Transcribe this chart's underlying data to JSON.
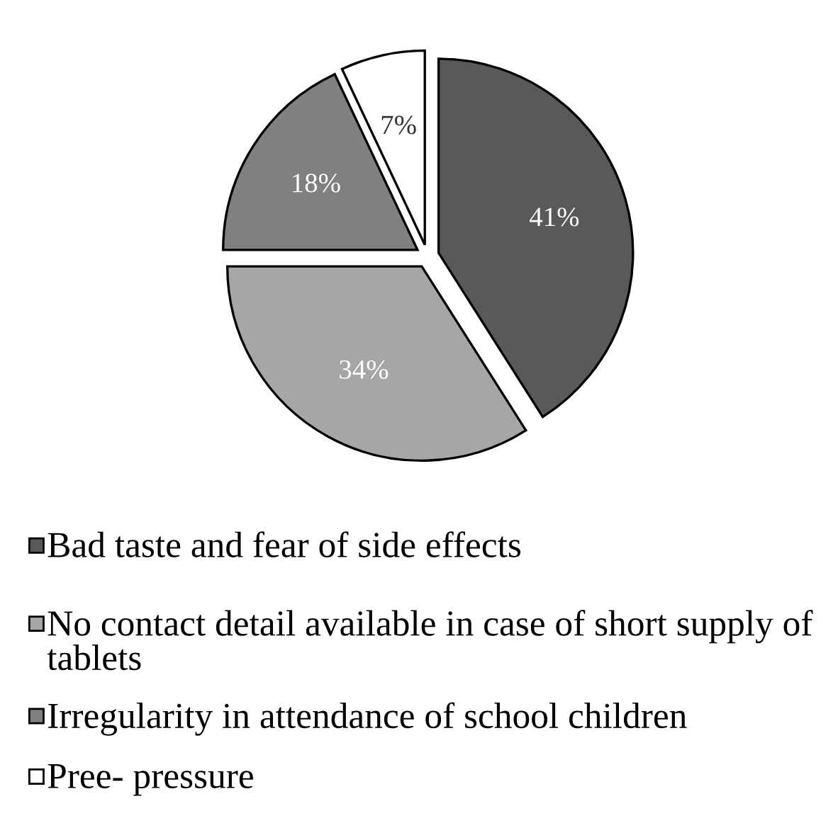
{
  "chart_data": {
    "type": "pie",
    "categories": [
      "Bad taste and fear of side effects",
      "No contact detail available in case of short supply of tablets",
      "Irregularity in attendance of school children",
      "Pree- pressure"
    ],
    "values": [
      41,
      34,
      18,
      7
    ],
    "colors": [
      "#595959",
      "#a6a6a6",
      "#808080",
      "#ffffff"
    ],
    "value_labels": [
      "41%",
      "34%",
      "18%",
      "7%"
    ],
    "legend": "bottom"
  }
}
